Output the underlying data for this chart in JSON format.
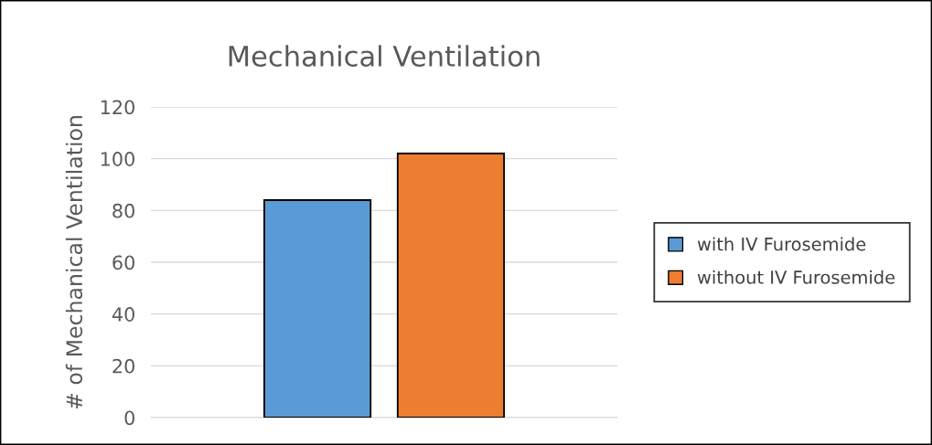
{
  "chart_data": {
    "type": "bar",
    "title": "Mechanical Ventilation",
    "ylabel": "# of Mechanical Ventilation",
    "categories": [
      null
    ],
    "series": [
      {
        "name": "with IV Furosemide",
        "color": "#5b9bd5",
        "values": [
          84
        ]
      },
      {
        "name": "without IV Furosemide",
        "color": "#ed7d31",
        "values": [
          102
        ]
      }
    ],
    "ylim": [
      0,
      120
    ],
    "yticks": [
      0,
      20,
      40,
      60,
      80,
      100,
      120
    ],
    "grid": "y",
    "legend": "right"
  }
}
